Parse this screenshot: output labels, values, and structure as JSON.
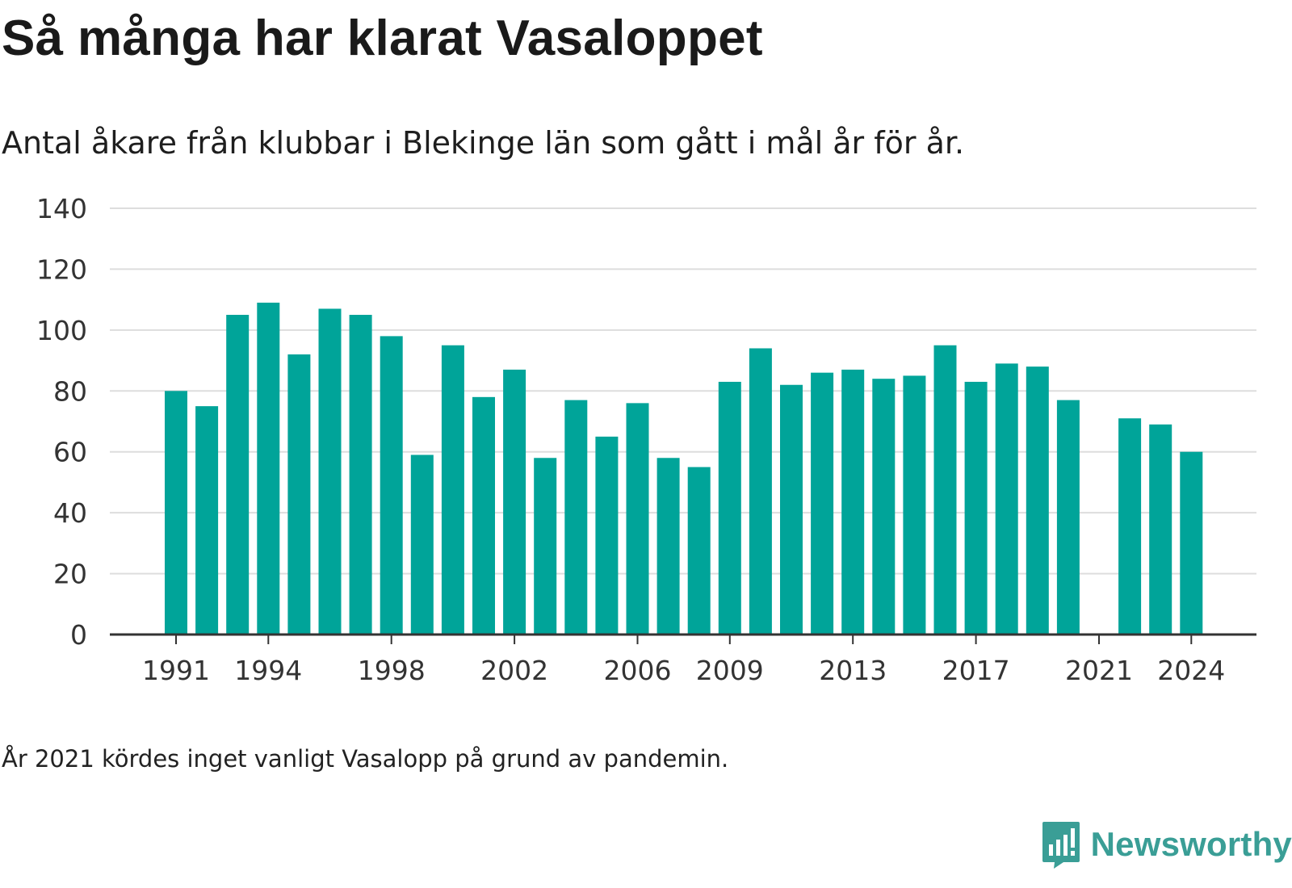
{
  "title": "Så många har klarat Vasaloppet",
  "subtitle": "Antal åkare från klubbar i Blekinge län som gått i mål år för år.",
  "footnote": "År 2021 kördes inget vanligt Vasalopp på grund av pandemin.",
  "brand": {
    "name": "Newsworthy",
    "icon": "newsworthy-logo-icon",
    "color": "#3a9e96"
  },
  "colors": {
    "bar": "#00a499",
    "grid": "#dddddd",
    "axis": "#333333"
  },
  "chart_data": {
    "type": "bar",
    "title": "Så många har klarat Vasaloppet",
    "subtitle": "Antal åkare från klubbar i Blekinge län som gått i mål år för år.",
    "x": [
      1991,
      1992,
      1993,
      1994,
      1995,
      1996,
      1997,
      1998,
      1999,
      2000,
      2001,
      2002,
      2003,
      2004,
      2005,
      2006,
      2007,
      2008,
      2009,
      2010,
      2011,
      2012,
      2013,
      2014,
      2015,
      2016,
      2017,
      2018,
      2019,
      2020,
      2021,
      2022,
      2023,
      2024
    ],
    "values": [
      80,
      75,
      105,
      109,
      92,
      107,
      105,
      98,
      59,
      95,
      78,
      87,
      58,
      77,
      65,
      76,
      58,
      55,
      83,
      94,
      82,
      86,
      87,
      84,
      85,
      95,
      83,
      89,
      88,
      77,
      null,
      71,
      69,
      60
    ],
    "x_ticks": [
      "1991",
      "1994",
      "1998",
      "2002",
      "2006",
      "2009",
      "2013",
      "2017",
      "2021",
      "2024"
    ],
    "y_ticks": [
      "0",
      "20",
      "40",
      "60",
      "80",
      "100",
      "120",
      "140"
    ],
    "ylim": [
      0,
      140
    ],
    "xlabel": "",
    "ylabel": "",
    "grid": "horizontal",
    "legend": "none"
  }
}
